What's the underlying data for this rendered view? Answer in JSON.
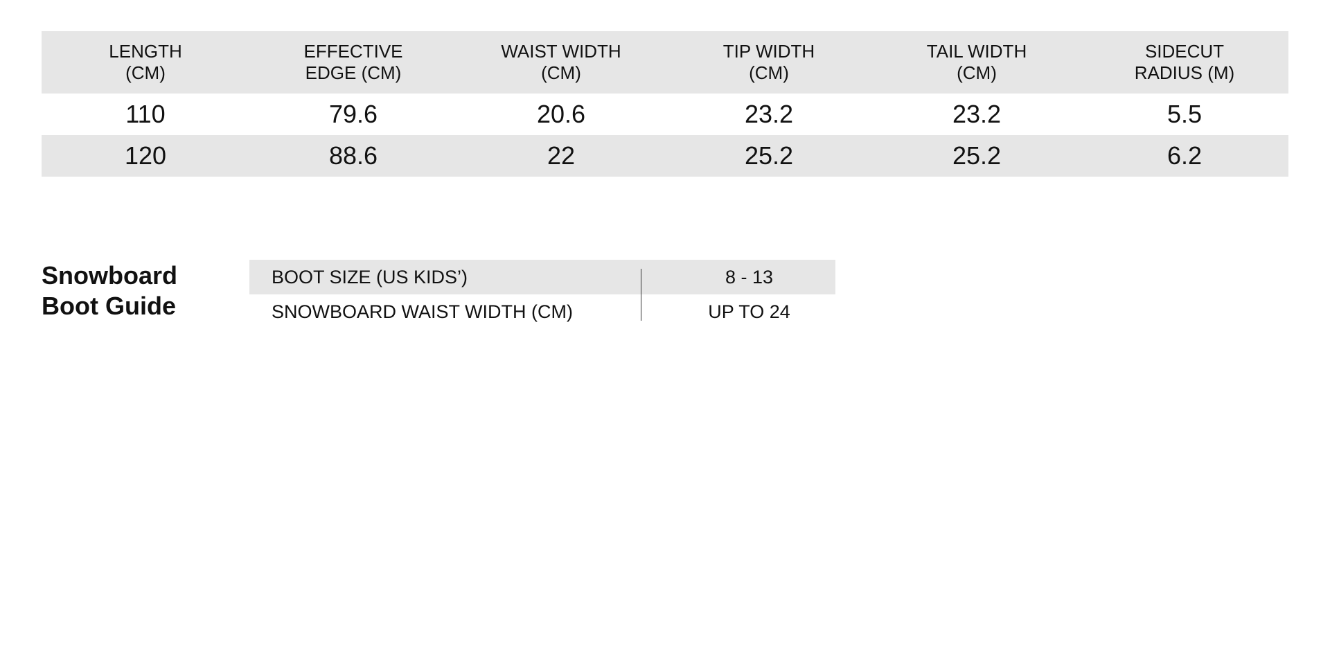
{
  "specs": {
    "headers": [
      [
        "LENGTH",
        "(CM)"
      ],
      [
        "EFFECTIVE",
        "EDGE (CM)"
      ],
      [
        "WAIST WIDTH",
        "(CM)"
      ],
      [
        "TIP WIDTH",
        "(CM)"
      ],
      [
        "TAIL WIDTH",
        "(CM)"
      ],
      [
        "SIDECUT",
        "RADIUS (M)"
      ]
    ],
    "rows": [
      [
        110,
        79.6,
        20.6,
        23.2,
        23.2,
        5.5
      ],
      [
        120,
        88.6,
        22,
        25.2,
        25.2,
        6.2
      ]
    ]
  },
  "boot_guide": {
    "title": [
      "Snowboard",
      "Boot Guide"
    ],
    "rows": [
      [
        "BOOT SIZE (US KIDS’)",
        "8 - 13"
      ],
      [
        "SNOWBOARD WAIST WIDTH (CM)",
        "UP TO 24"
      ]
    ]
  }
}
